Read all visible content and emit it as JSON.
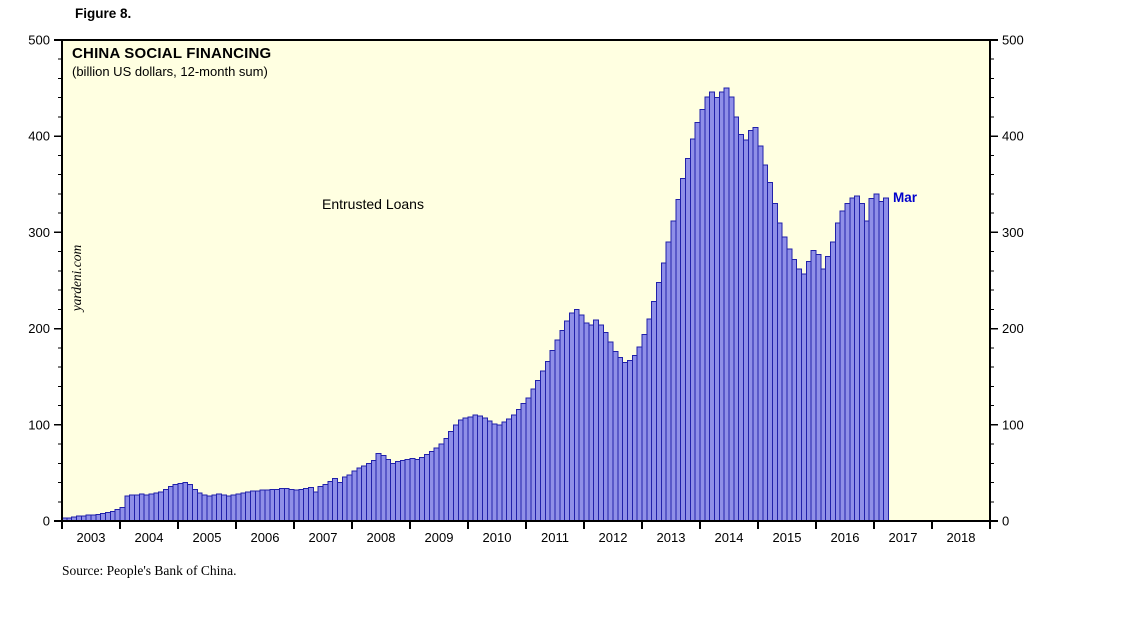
{
  "figure_label": "Figure 8.",
  "annotation": "Entrusted Loans",
  "end_label": "Mar",
  "watermark": "yardeni.com",
  "source": "Source: People's Bank of China.",
  "colors": {
    "bar_fill": "#8f8fe8",
    "bar_stroke": "#2121aa",
    "plot_bg": "#ffffe1",
    "frame": "#000000",
    "end_label_color": "#0000cc",
    "text": "#000000"
  },
  "chart_data": {
    "type": "bar",
    "title": "CHINA SOCIAL FINANCING",
    "subtitle": "(billion US dollars, 12-month sum)",
    "series_name": "Entrusted Loans",
    "frequency": "monthly",
    "start": "2003-01",
    "end": "2017-03",
    "ylim": [
      0,
      500
    ],
    "y_axis": {
      "min": 0,
      "max": 500,
      "major_ticks": [
        0,
        100,
        200,
        300,
        400,
        500
      ],
      "minor_tick_step": 20,
      "labels_both_sides": true
    },
    "x_axis": {
      "start_year": 2003,
      "end_year": 2019,
      "year_labels": [
        2003,
        2004,
        2005,
        2006,
        2007,
        2008,
        2009,
        2010,
        2011,
        2012,
        2013,
        2014,
        2015,
        2016,
        2017,
        2018
      ]
    },
    "values": [
      3,
      3,
      4,
      5,
      5,
      6,
      6,
      7,
      8,
      9,
      10,
      12,
      14,
      26,
      27,
      27,
      28,
      27,
      28,
      29,
      30,
      33,
      36,
      38,
      39,
      40,
      38,
      33,
      29,
      27,
      26,
      27,
      28,
      27,
      26,
      27,
      28,
      29,
      30,
      31,
      31,
      32,
      32,
      33,
      33,
      34,
      34,
      33,
      32,
      33,
      34,
      35,
      30,
      36,
      38,
      41,
      44,
      40,
      46,
      48,
      52,
      55,
      57,
      60,
      63,
      70,
      68,
      64,
      60,
      62,
      63,
      64,
      65,
      64,
      66,
      69,
      72,
      76,
      80,
      86,
      93,
      100,
      105,
      107,
      108,
      110,
      109,
      107,
      104,
      101,
      100,
      103,
      106,
      110,
      116,
      122,
      128,
      137,
      146,
      156,
      166,
      177,
      188,
      198,
      208,
      216,
      220,
      214,
      206,
      204,
      209,
      204,
      196,
      186,
      176,
      170,
      165,
      167,
      172,
      181,
      194,
      210,
      228,
      248,
      268,
      290,
      312,
      334,
      356,
      377,
      397,
      414,
      428,
      441,
      446,
      440,
      446,
      450,
      441,
      420,
      402,
      396,
      406,
      409,
      390,
      370,
      352,
      330,
      310,
      295,
      283,
      272,
      262,
      257,
      270,
      281,
      277,
      262,
      275,
      290,
      310,
      322,
      330,
      336,
      338,
      330,
      312,
      335,
      340,
      332,
      336
    ]
  }
}
